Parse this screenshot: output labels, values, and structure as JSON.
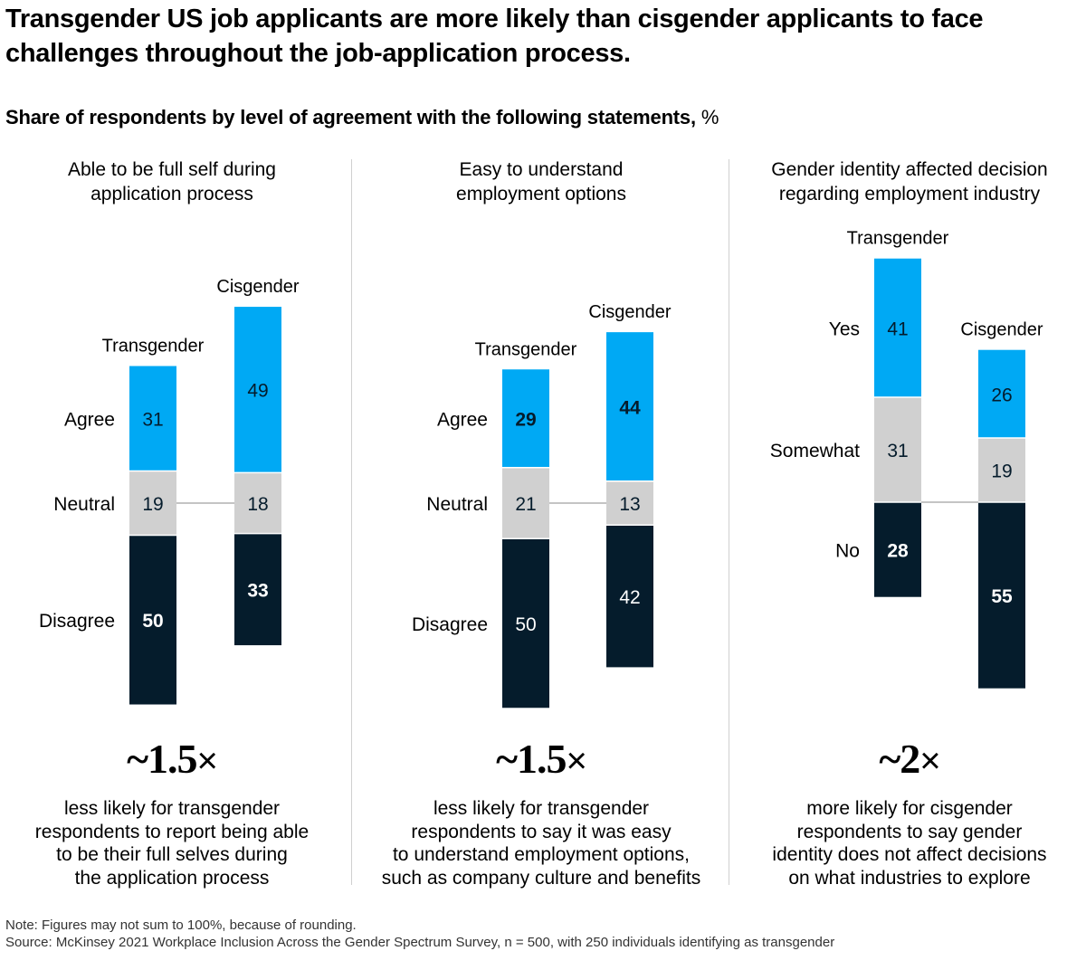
{
  "title": "Transgender US job applicants are more likely than cisgender applicants to face challenges throughout the job-application process.",
  "subtitle": "Share of respondents by level of agreement with the following statements,",
  "subtitle_unit": "%",
  "colors": {
    "top": "#00a9f4",
    "middle": "#d0d0d0",
    "bottom": "#051c2c",
    "connector": "#b0b0b0",
    "divider": "#d0d0d0"
  },
  "chart_data": [
    {
      "type": "bar",
      "stacked": true,
      "title": "Able to be full self during application process",
      "categories": [
        "Transgender",
        "Cisgender"
      ],
      "series": [
        {
          "name": "Agree",
          "values": [
            31,
            49
          ],
          "bold": [
            false,
            false
          ]
        },
        {
          "name": "Neutral",
          "values": [
            19,
            18
          ],
          "bold": [
            false,
            false
          ]
        },
        {
          "name": "Disagree",
          "values": [
            50,
            33
          ],
          "bold": [
            true,
            true
          ]
        }
      ],
      "align_segment": "Neutral",
      "ylim": [
        0,
        100
      ],
      "multiplier": "~1.5",
      "multiplier_symbol": "×",
      "description": "less likely for transgender\nrespondents to report being able\nto be their full selves during\nthe application process"
    },
    {
      "type": "bar",
      "stacked": true,
      "title": "Easy to understand employment options",
      "categories": [
        "Transgender",
        "Cisgender"
      ],
      "series": [
        {
          "name": "Agree",
          "values": [
            29,
            44
          ],
          "bold": [
            true,
            true
          ]
        },
        {
          "name": "Neutral",
          "values": [
            21,
            13
          ],
          "bold": [
            false,
            false
          ]
        },
        {
          "name": "Disagree",
          "values": [
            50,
            42
          ],
          "bold": [
            false,
            false
          ]
        }
      ],
      "align_segment": "Neutral",
      "ylim": [
        0,
        100
      ],
      "multiplier": "~1.5",
      "multiplier_symbol": "×",
      "description": "less likely for transgender\nrespondents to say it was easy\nto understand employment options,\nsuch as company culture and benefits"
    },
    {
      "type": "bar",
      "stacked": true,
      "title": "Gender identity affected decision regarding employment industry",
      "categories": [
        "Transgender",
        "Cisgender"
      ],
      "series": [
        {
          "name": "Yes",
          "values": [
            41,
            26
          ],
          "bold": [
            false,
            false
          ]
        },
        {
          "name": "Somewhat",
          "values": [
            31,
            19
          ],
          "bold": [
            false,
            false
          ]
        },
        {
          "name": "No",
          "values": [
            28,
            55
          ],
          "bold": [
            true,
            true
          ]
        }
      ],
      "align_segment": "No",
      "ylim": [
        0,
        100
      ],
      "multiplier": "~2",
      "multiplier_symbol": "×",
      "description": "more likely for cisgender\nrespondents to say gender\nidentity does not affect decisions\non what industries to explore"
    }
  ],
  "note": "Note: Figures may not sum to 100%, because of rounding.",
  "source": "Source: McKinsey 2021 Workplace Inclusion Across the Gender Spectrum Survey, n = 500, with 250 individuals identifying as transgender"
}
